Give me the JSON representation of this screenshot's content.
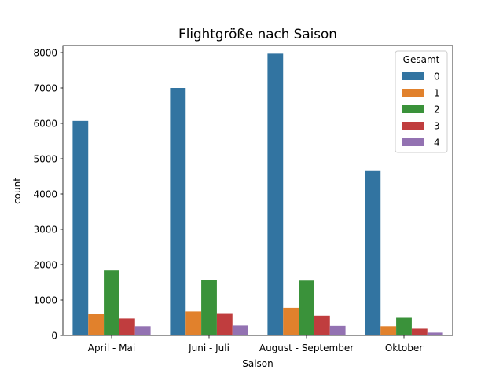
{
  "chart_data": {
    "type": "bar",
    "title": "Flightgröße nach Saison",
    "xlabel": "Saison",
    "ylabel": "count",
    "ylim": [
      0,
      8200
    ],
    "yticks": [
      0,
      1000,
      2000,
      3000,
      4000,
      5000,
      6000,
      7000,
      8000
    ],
    "categories": [
      "April - Mai",
      "Juni - Juli",
      "August - September",
      "Oktober"
    ],
    "legend_title": "Gesamt",
    "legend_position": "top-right",
    "grid": false,
    "series": [
      {
        "name": "0",
        "color": "#3274a1",
        "values": [
          6070,
          7000,
          7970,
          4650
        ]
      },
      {
        "name": "1",
        "color": "#e1812c",
        "values": [
          600,
          680,
          780,
          260
        ]
      },
      {
        "name": "2",
        "color": "#3a923a",
        "values": [
          1840,
          1570,
          1550,
          500
        ]
      },
      {
        "name": "3",
        "color": "#c03d3e",
        "values": [
          480,
          610,
          560,
          190
        ]
      },
      {
        "name": "4",
        "color": "#9372b2",
        "values": [
          260,
          280,
          270,
          80
        ]
      }
    ]
  }
}
